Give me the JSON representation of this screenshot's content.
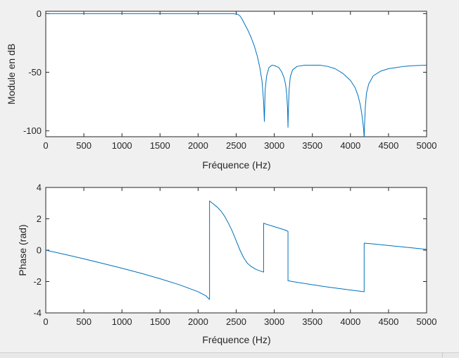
{
  "chart_data": [
    {
      "type": "line",
      "title": "",
      "xlabel": "Fréquence (Hz)",
      "ylabel": "Module en dB",
      "xlim": [
        0,
        5000
      ],
      "ylim": [
        -105,
        2
      ],
      "x_ticks": [
        "0",
        "500",
        "1000",
        "1500",
        "2000",
        "2500",
        "3000",
        "3500",
        "4000",
        "4500",
        "5000"
      ],
      "x_tick_values": [
        0,
        500,
        1000,
        1500,
        2000,
        2500,
        3000,
        3500,
        4000,
        4500,
        5000
      ],
      "y_ticks": [
        "0",
        "-50",
        "-100"
      ],
      "y_tick_values": [
        0,
        -50,
        -100
      ],
      "grid": false,
      "color": "#0072bd",
      "series": [
        {
          "x": [
            0,
            500,
            1000,
            1500,
            2000,
            2300,
            2450,
            2520,
            2550,
            2580,
            2620,
            2660,
            2700,
            2740,
            2780,
            2810,
            2840,
            2860,
            2870,
            2880,
            2900,
            2930,
            2970,
            3010,
            3060,
            3100,
            3130,
            3150,
            3165,
            3175,
            3180,
            3185,
            3195,
            3210,
            3240,
            3300,
            3400,
            3500,
            3600,
            3700,
            3800,
            3900,
            4000,
            4060,
            4100,
            4130,
            4150,
            4165,
            4175,
            4180,
            4185,
            4195,
            4210,
            4240,
            4300,
            4400,
            4500,
            4600,
            4700,
            4800,
            4900,
            5000
          ],
          "y": [
            0,
            0,
            0,
            0,
            0,
            0,
            0,
            -0.5,
            -2,
            -5,
            -10,
            -15,
            -21,
            -28,
            -37,
            -46,
            -58,
            -75,
            -92,
            -65,
            -53,
            -46,
            -44,
            -44.5,
            -46,
            -50,
            -55,
            -61,
            -70,
            -82,
            -97,
            -82,
            -65,
            -54,
            -48,
            -45,
            -44,
            -44,
            -44,
            -45,
            -47,
            -51,
            -57,
            -63,
            -70,
            -78,
            -86,
            -94,
            -100,
            -107,
            -95,
            -80,
            -68,
            -60,
            -53,
            -49,
            -47,
            -46,
            -45,
            -44.5,
            -44.2,
            -44
          ]
        }
      ]
    },
    {
      "type": "line",
      "title": "",
      "xlabel": "Fréquence (Hz)",
      "ylabel": "Phase (rad)",
      "xlim": [
        0,
        5000
      ],
      "ylim": [
        -4,
        4
      ],
      "x_ticks": [
        "0",
        "500",
        "1000",
        "1500",
        "2000",
        "2500",
        "3000",
        "3500",
        "4000",
        "4500",
        "5000"
      ],
      "x_tick_values": [
        0,
        500,
        1000,
        1500,
        2000,
        2500,
        3000,
        3500,
        4000,
        4500,
        5000
      ],
      "y_ticks": [
        "4",
        "2",
        "0",
        "-2",
        "-4"
      ],
      "y_tick_values": [
        4,
        2,
        0,
        -2,
        -4
      ],
      "grid": false,
      "color": "#0072bd",
      "series": [
        {
          "x": [
            0,
            250,
            500,
            750,
            1000,
            1250,
            1500,
            1750,
            2000,
            2100,
            2150,
            2150,
            2200,
            2250,
            2300,
            2350,
            2400,
            2450,
            2500,
            2550,
            2600,
            2650,
            2700,
            2750,
            2800,
            2850,
            2860,
            2860,
            2900,
            3000,
            3100,
            3150,
            3180,
            3180,
            3300,
            3500,
            3700,
            3900,
            4100,
            4180,
            4180,
            4300,
            4500,
            4700,
            4900,
            5000
          ],
          "y": [
            0,
            -0.27,
            -0.55,
            -0.85,
            -1.15,
            -1.47,
            -1.82,
            -2.2,
            -2.65,
            -2.9,
            -3.14,
            3.14,
            2.95,
            2.75,
            2.5,
            2.15,
            1.7,
            1.2,
            0.6,
            0.0,
            -0.5,
            -0.85,
            -1.05,
            -1.2,
            -1.3,
            -1.38,
            -1.4,
            1.72,
            1.65,
            1.5,
            1.35,
            1.27,
            1.2,
            -1.95,
            -2.05,
            -2.2,
            -2.35,
            -2.48,
            -2.6,
            -2.65,
            0.45,
            0.4,
            0.3,
            0.2,
            0.1,
            0.05
          ]
        }
      ]
    }
  ]
}
